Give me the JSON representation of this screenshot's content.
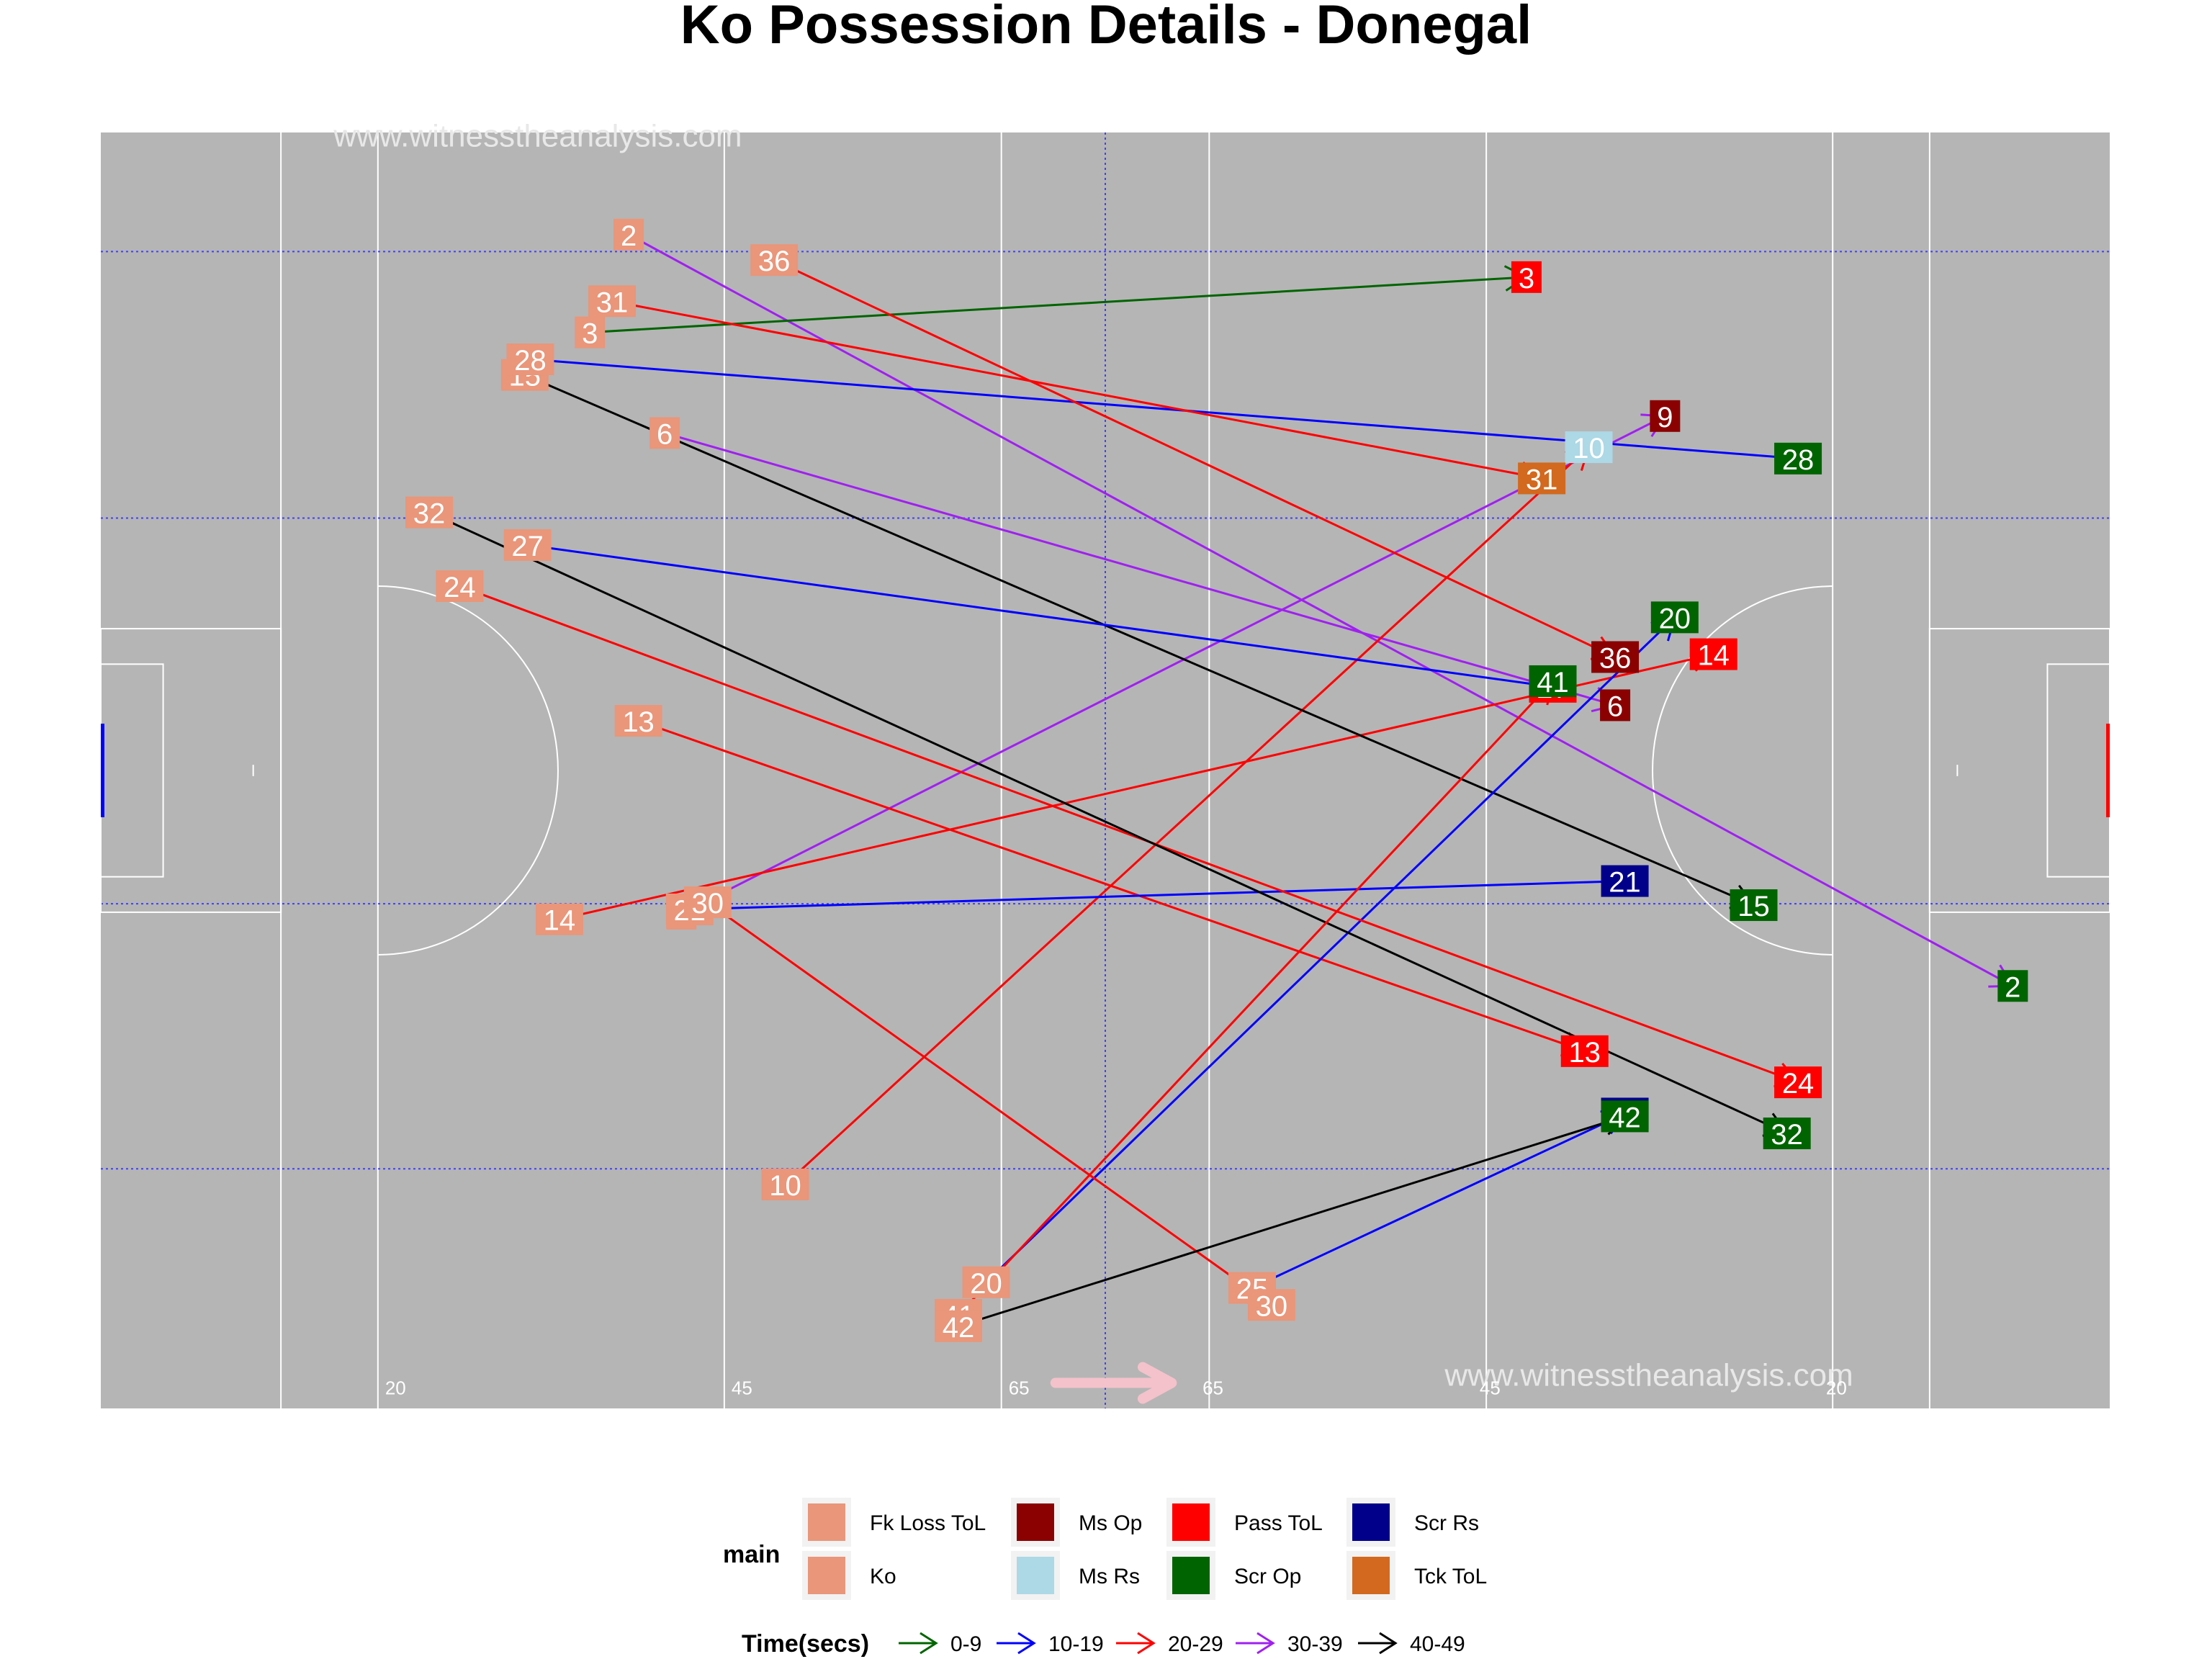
{
  "chart_data": {
    "type": "scatter",
    "title": "Ko Possession Details - Donegal",
    "watermarks": [
      "www.witnesstheanalysis.com",
      "www.witnesstheanalysis.com"
    ],
    "pitch_marks": [
      "20",
      "45",
      "65",
      "65",
      "45",
      "20"
    ],
    "xlim": [
      0,
      145
    ],
    "ylim": [
      0,
      90
    ],
    "direction": "right",
    "legend_position": "bottom",
    "legend_main": {
      "title": "main",
      "items": [
        {
          "label": "Fk Loss ToL",
          "color": "#E9967A"
        },
        {
          "label": "Ko",
          "color": "#E9967A"
        },
        {
          "label": "Ms Op",
          "color": "#8B0000"
        },
        {
          "label": "Ms Rs",
          "color": "#ADD8E6"
        },
        {
          "label": "Pass ToL",
          "color": "#FF0000"
        },
        {
          "label": "Scr Op",
          "color": "#006400"
        },
        {
          "label": "Scr Rs",
          "color": "#00008B"
        },
        {
          "label": "Tck ToL",
          "color": "#D2691E"
        }
      ]
    },
    "legend_time": {
      "title": "Time(secs)",
      "items": [
        {
          "label": "0-9",
          "color": "#006400"
        },
        {
          "label": "10-19",
          "color": "#0000FF"
        },
        {
          "label": "20-29",
          "color": "#FF0000"
        },
        {
          "label": "30-39",
          "color": "#A020F0"
        },
        {
          "label": "40-49",
          "color": "#000000"
        }
      ]
    },
    "possessions": [
      {
        "id": "2",
        "start": [
          38.1,
          82.8
        ],
        "end": [
          138.0,
          29.8
        ],
        "time": "30-39",
        "outcome": "Scr Op"
      },
      {
        "id": "3",
        "start": [
          35.3,
          75.9
        ],
        "end": [
          102.9,
          79.8
        ],
        "time": "0-9",
        "outcome": "Pass ToL"
      },
      {
        "id": "6",
        "start": [
          40.7,
          68.8
        ],
        "end": [
          109.3,
          49.6
        ],
        "time": "30-39",
        "outcome": "Ms Op"
      },
      {
        "id": "9",
        "start": [
          41.9,
          34.9
        ],
        "end": [
          112.9,
          70.0
        ],
        "time": "30-39",
        "outcome": "Ms Op"
      },
      {
        "id": "10",
        "start": [
          49.4,
          15.8
        ],
        "end": [
          107.4,
          67.8
        ],
        "time": "20-29",
        "outcome": "Ms Rs"
      },
      {
        "id": "13",
        "start": [
          38.8,
          48.5
        ],
        "end": [
          107.1,
          25.2
        ],
        "time": "20-29",
        "outcome": "Pass ToL"
      },
      {
        "id": "14",
        "start": [
          33.1,
          34.5
        ],
        "end": [
          116.4,
          53.2
        ],
        "time": "20-29",
        "outcome": "Pass ToL"
      },
      {
        "id": "15",
        "start": [
          30.6,
          72.9
        ],
        "end": [
          119.3,
          35.5
        ],
        "time": "40-49",
        "outcome": "Scr Op"
      },
      {
        "id": "20",
        "start": [
          63.9,
          8.9
        ],
        "end": [
          113.6,
          55.8
        ],
        "time": "10-19",
        "outcome": "Scr Op"
      },
      {
        "id": "21",
        "start": [
          42.5,
          35.2
        ],
        "end": [
          110.0,
          37.2
        ],
        "time": "10-19",
        "outcome": "Scr Rs"
      },
      {
        "id": "24",
        "start": [
          25.9,
          58.0
        ],
        "end": [
          122.5,
          23.0
        ],
        "time": "20-29",
        "outcome": "Pass ToL"
      },
      {
        "id": "25",
        "start": [
          83.1,
          8.5
        ],
        "end": [
          110.0,
          20.8
        ],
        "time": "10-19",
        "outcome": "Scr Rs"
      },
      {
        "id": "27",
        "start": [
          30.8,
          60.9
        ],
        "end": [
          104.8,
          50.9
        ],
        "time": "10-19",
        "outcome": "Pass ToL"
      },
      {
        "id": "28",
        "start": [
          31.0,
          74.0
        ],
        "end": [
          122.5,
          67.0
        ],
        "time": "10-19",
        "outcome": "Scr Op"
      },
      {
        "id": "30",
        "start": [
          43.8,
          35.7
        ],
        "end": [
          84.5,
          7.3
        ],
        "time": "20-29",
        "outcome": "Ko"
      },
      {
        "id": "31",
        "start": [
          36.9,
          78.1
        ],
        "end": [
          104.0,
          65.6
        ],
        "time": "20-29",
        "outcome": "Tck ToL"
      },
      {
        "id": "32",
        "start": [
          23.7,
          63.2
        ],
        "end": [
          121.7,
          19.4
        ],
        "time": "40-49",
        "outcome": "Scr Op"
      },
      {
        "id": "36",
        "start": [
          48.6,
          81.0
        ],
        "end": [
          109.3,
          53.0
        ],
        "time": "20-29",
        "outcome": "Ms Op"
      },
      {
        "id": "41",
        "start": [
          61.9,
          6.6
        ],
        "end": [
          104.8,
          51.3
        ],
        "time": "20-29",
        "outcome": "Scr Op"
      },
      {
        "id": "42",
        "start": [
          61.9,
          5.8
        ],
        "end": [
          110.0,
          20.6
        ],
        "time": "40-49",
        "outcome": "Scr Op"
      }
    ]
  }
}
